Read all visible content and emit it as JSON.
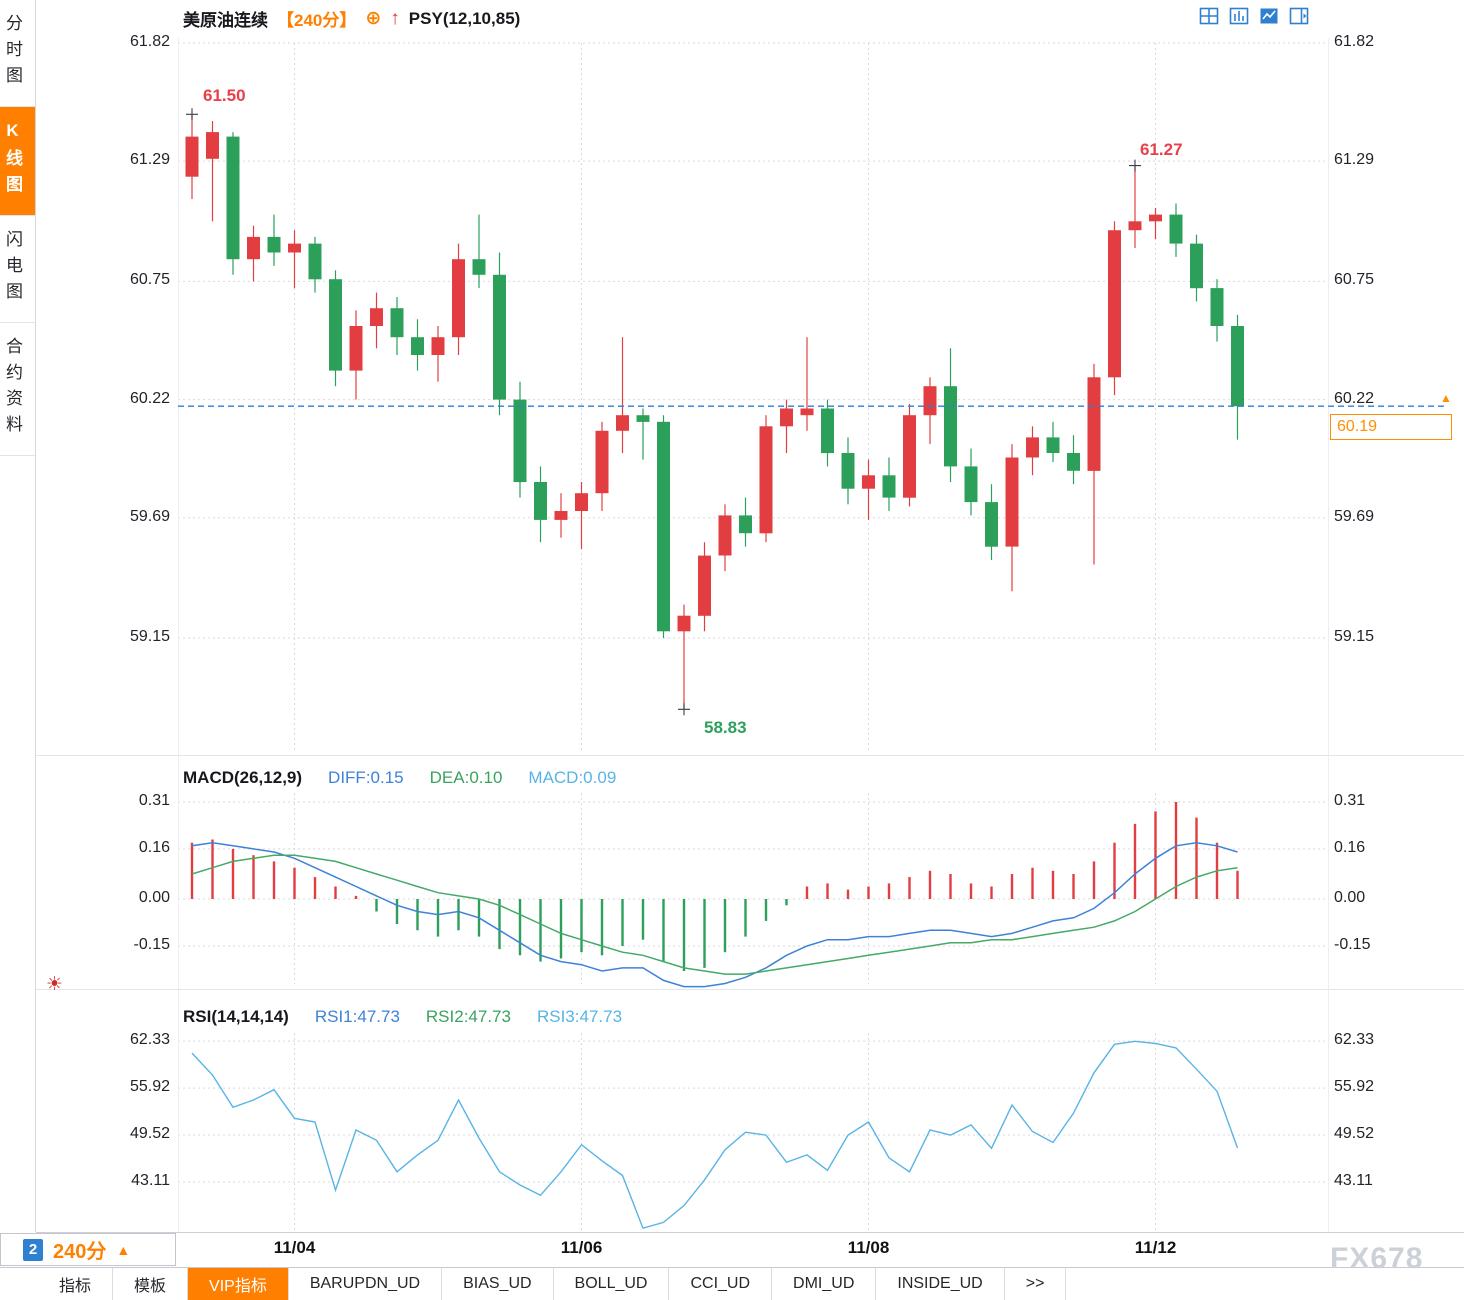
{
  "accent_colors": {
    "up_red": "#e23e42",
    "down_green": "#2ca05a",
    "orange": "#ff8000",
    "diff_blue": "#3e82d8",
    "dea_green": "#46a968",
    "light_blue": "#58b4e6",
    "dashed_line": "#2b7fd9",
    "annotation_red": "#e8404a",
    "annotation_green": "#2da05c",
    "grid": "#d9d9df"
  },
  "sidebar": {
    "items": [
      {
        "label": "分时图",
        "active": false
      },
      {
        "label": "K线图",
        "active": true
      },
      {
        "label": "闪电图",
        "active": false
      },
      {
        "label": "合约资料",
        "active": false
      }
    ]
  },
  "header": {
    "symbol": "美原油连续",
    "period": "【240分】",
    "indicator": "PSY(12,10,85)"
  },
  "icons": {
    "plus_circle": "⊕",
    "up_arrow": "↑",
    "sun": "☀",
    "triangle_up": "▲"
  },
  "main_chart": {
    "y_ticks": [
      "61.82",
      "61.29",
      "60.75",
      "60.22",
      "59.69",
      "59.15"
    ],
    "annotations": {
      "high": "61.50",
      "peak": "61.27",
      "low": "58.83",
      "last_price": "60.19"
    }
  },
  "macd": {
    "title": "MACD(26,12,9)",
    "diff_label": "DIFF:0.15",
    "dea_label": "DEA:0.10",
    "macd_label": "MACD:0.09"
  },
  "rsi": {
    "title": "RSI(14,14,14)",
    "rsi1_label": "RSI1:47.73",
    "rsi2_label": "RSI2:47.73",
    "rsi3_label": "RSI3:47.73"
  },
  "x_axis": {
    "labels": [
      {
        "label": "11/04",
        "index": 5
      },
      {
        "label": "11/06",
        "index": 19
      },
      {
        "label": "11/08",
        "index": 33
      },
      {
        "label": "11/12",
        "index": 47
      }
    ]
  },
  "timeframe_bar": {
    "badge": "2",
    "label": "240分",
    "arrow": "▲"
  },
  "bottom_tabs": [
    {
      "label": "指标"
    },
    {
      "label": "模板"
    },
    {
      "label": "VIP指标",
      "active": true
    },
    {
      "label": "BARUPDN_UD"
    },
    {
      "label": "BIAS_UD"
    },
    {
      "label": "BOLL_UD"
    },
    {
      "label": "CCI_UD"
    },
    {
      "label": "DMI_UD"
    },
    {
      "label": "INSIDE_UD"
    },
    {
      "label": ">>"
    }
  ],
  "watermark": "FX678",
  "chart_data": [
    {
      "type": "candlestick",
      "title": "美原油连续 【240分】",
      "period": "240分",
      "y_ticks": [
        61.82,
        61.29,
        60.75,
        60.22,
        59.69,
        59.15
      ],
      "x_tick_labels": [
        "11/04",
        "11/06",
        "11/08",
        "11/12"
      ],
      "annotations": {
        "high": 61.5,
        "high_index": 0,
        "peak": 61.27,
        "peak_index": 46,
        "low": 58.83,
        "low_index": 24,
        "last_price": 60.19
      },
      "ohlc": [
        [
          61.22,
          61.5,
          61.12,
          61.4
        ],
        [
          61.3,
          61.47,
          61.02,
          61.42
        ],
        [
          61.4,
          61.42,
          60.78,
          60.85
        ],
        [
          60.85,
          61.0,
          60.75,
          60.95
        ],
        [
          60.95,
          61.05,
          60.82,
          60.88
        ],
        [
          60.88,
          60.98,
          60.72,
          60.92
        ],
        [
          60.92,
          60.95,
          60.7,
          60.76
        ],
        [
          60.76,
          60.8,
          60.28,
          60.35
        ],
        [
          60.35,
          60.62,
          60.22,
          60.55
        ],
        [
          60.55,
          60.7,
          60.45,
          60.63
        ],
        [
          60.63,
          60.68,
          60.42,
          60.5
        ],
        [
          60.5,
          60.58,
          60.35,
          60.42
        ],
        [
          60.42,
          60.55,
          60.3,
          60.5
        ],
        [
          60.5,
          60.92,
          60.42,
          60.85
        ],
        [
          60.85,
          61.05,
          60.72,
          60.78
        ],
        [
          60.78,
          60.88,
          60.15,
          60.22
        ],
        [
          60.22,
          60.3,
          59.78,
          59.85
        ],
        [
          59.85,
          59.92,
          59.58,
          59.68
        ],
        [
          59.68,
          59.8,
          59.6,
          59.72
        ],
        [
          59.72,
          59.85,
          59.55,
          59.8
        ],
        [
          59.8,
          60.12,
          59.72,
          60.08
        ],
        [
          60.08,
          60.5,
          59.98,
          60.15
        ],
        [
          60.15,
          60.18,
          59.95,
          60.12
        ],
        [
          60.12,
          60.15,
          59.15,
          59.18
        ],
        [
          59.18,
          59.3,
          58.83,
          59.25
        ],
        [
          59.25,
          59.58,
          59.18,
          59.52
        ],
        [
          59.52,
          59.75,
          59.45,
          59.7
        ],
        [
          59.7,
          59.78,
          59.56,
          59.62
        ],
        [
          59.62,
          60.15,
          59.58,
          60.1
        ],
        [
          60.1,
          60.22,
          59.98,
          60.18
        ],
        [
          60.15,
          60.5,
          60.08,
          60.18
        ],
        [
          60.18,
          60.22,
          59.92,
          59.98
        ],
        [
          59.98,
          60.05,
          59.75,
          59.82
        ],
        [
          59.82,
          59.95,
          59.68,
          59.88
        ],
        [
          59.88,
          59.96,
          59.72,
          59.78
        ],
        [
          59.78,
          60.2,
          59.74,
          60.15
        ],
        [
          60.15,
          60.32,
          60.02,
          60.28
        ],
        [
          60.28,
          60.45,
          59.85,
          59.92
        ],
        [
          59.92,
          60.0,
          59.7,
          59.76
        ],
        [
          59.76,
          59.84,
          59.5,
          59.56
        ],
        [
          59.56,
          60.02,
          59.36,
          59.96
        ],
        [
          59.96,
          60.1,
          59.88,
          60.05
        ],
        [
          60.05,
          60.12,
          59.94,
          59.98
        ],
        [
          59.98,
          60.06,
          59.84,
          59.9
        ],
        [
          59.9,
          60.38,
          59.48,
          60.32
        ],
        [
          60.32,
          61.02,
          60.24,
          60.98
        ],
        [
          60.98,
          61.27,
          60.9,
          61.02
        ],
        [
          61.02,
          61.08,
          60.94,
          61.05
        ],
        [
          61.05,
          61.1,
          60.86,
          60.92
        ],
        [
          60.92,
          60.96,
          60.66,
          60.72
        ],
        [
          60.72,
          60.76,
          60.48,
          60.55
        ],
        [
          60.55,
          60.6,
          60.04,
          60.19
        ]
      ]
    },
    {
      "type": "macd",
      "title": "MACD(26,12,9)",
      "diff_value": 0.15,
      "dea_value": 0.1,
      "macd_value": 0.09,
      "y_ticks": [
        0.31,
        0.16,
        0.0,
        -0.15
      ],
      "diff": [
        0.17,
        0.18,
        0.17,
        0.16,
        0.15,
        0.13,
        0.1,
        0.07,
        0.04,
        0.01,
        -0.02,
        -0.04,
        -0.05,
        -0.04,
        -0.06,
        -0.1,
        -0.14,
        -0.18,
        -0.2,
        -0.21,
        -0.23,
        -0.22,
        -0.22,
        -0.26,
        -0.28,
        -0.28,
        -0.27,
        -0.25,
        -0.22,
        -0.18,
        -0.15,
        -0.13,
        -0.13,
        -0.12,
        -0.12,
        -0.11,
        -0.1,
        -0.1,
        -0.11,
        -0.12,
        -0.11,
        -0.09,
        -0.07,
        -0.06,
        -0.03,
        0.02,
        0.08,
        0.13,
        0.17,
        0.18,
        0.17,
        0.15
      ],
      "dea": [
        0.08,
        0.1,
        0.12,
        0.13,
        0.14,
        0.14,
        0.13,
        0.12,
        0.1,
        0.08,
        0.06,
        0.04,
        0.02,
        0.01,
        0.0,
        -0.02,
        -0.05,
        -0.08,
        -0.11,
        -0.13,
        -0.15,
        -0.17,
        -0.18,
        -0.2,
        -0.22,
        -0.23,
        -0.24,
        -0.24,
        -0.23,
        -0.22,
        -0.21,
        -0.2,
        -0.19,
        -0.18,
        -0.17,
        -0.16,
        -0.15,
        -0.14,
        -0.14,
        -0.13,
        -0.13,
        -0.12,
        -0.11,
        -0.1,
        -0.09,
        -0.07,
        -0.04,
        0.0,
        0.04,
        0.07,
        0.09,
        0.1
      ],
      "hist": [
        0.18,
        0.19,
        0.16,
        0.14,
        0.12,
        0.1,
        0.07,
        0.04,
        0.01,
        -0.04,
        -0.08,
        -0.1,
        -0.12,
        -0.1,
        -0.12,
        -0.16,
        -0.18,
        -0.2,
        -0.19,
        -0.17,
        -0.18,
        -0.15,
        -0.13,
        -0.2,
        -0.23,
        -0.22,
        -0.17,
        -0.12,
        -0.07,
        -0.02,
        0.04,
        0.05,
        0.03,
        0.04,
        0.05,
        0.07,
        0.09,
        0.08,
        0.05,
        0.04,
        0.08,
        0.1,
        0.09,
        0.08,
        0.12,
        0.18,
        0.24,
        0.28,
        0.31,
        0.26,
        0.18,
        0.09
      ]
    },
    {
      "type": "line",
      "title": "RSI(14,14,14)",
      "rsi1": 47.73,
      "rsi2": 47.73,
      "rsi3": 47.73,
      "y_ticks": [
        62.33,
        55.92,
        49.52,
        43.11
      ],
      "values": [
        60.7,
        57.7,
        53.3,
        54.3,
        55.7,
        51.8,
        51.3,
        42.0,
        50.2,
        48.8,
        44.5,
        46.8,
        48.8,
        54.3,
        49.1,
        44.5,
        42.7,
        41.3,
        44.5,
        48.2,
        46.0,
        44.0,
        36.8,
        37.6,
        39.9,
        43.4,
        47.5,
        49.9,
        49.5,
        45.8,
        46.8,
        44.7,
        49.5,
        51.3,
        46.4,
        44.5,
        50.2,
        49.5,
        50.9,
        47.7,
        53.6,
        50.0,
        48.5,
        52.5,
        58.0,
        61.9,
        62.3,
        62.0,
        61.4,
        58.5,
        55.5,
        47.73
      ]
    }
  ]
}
